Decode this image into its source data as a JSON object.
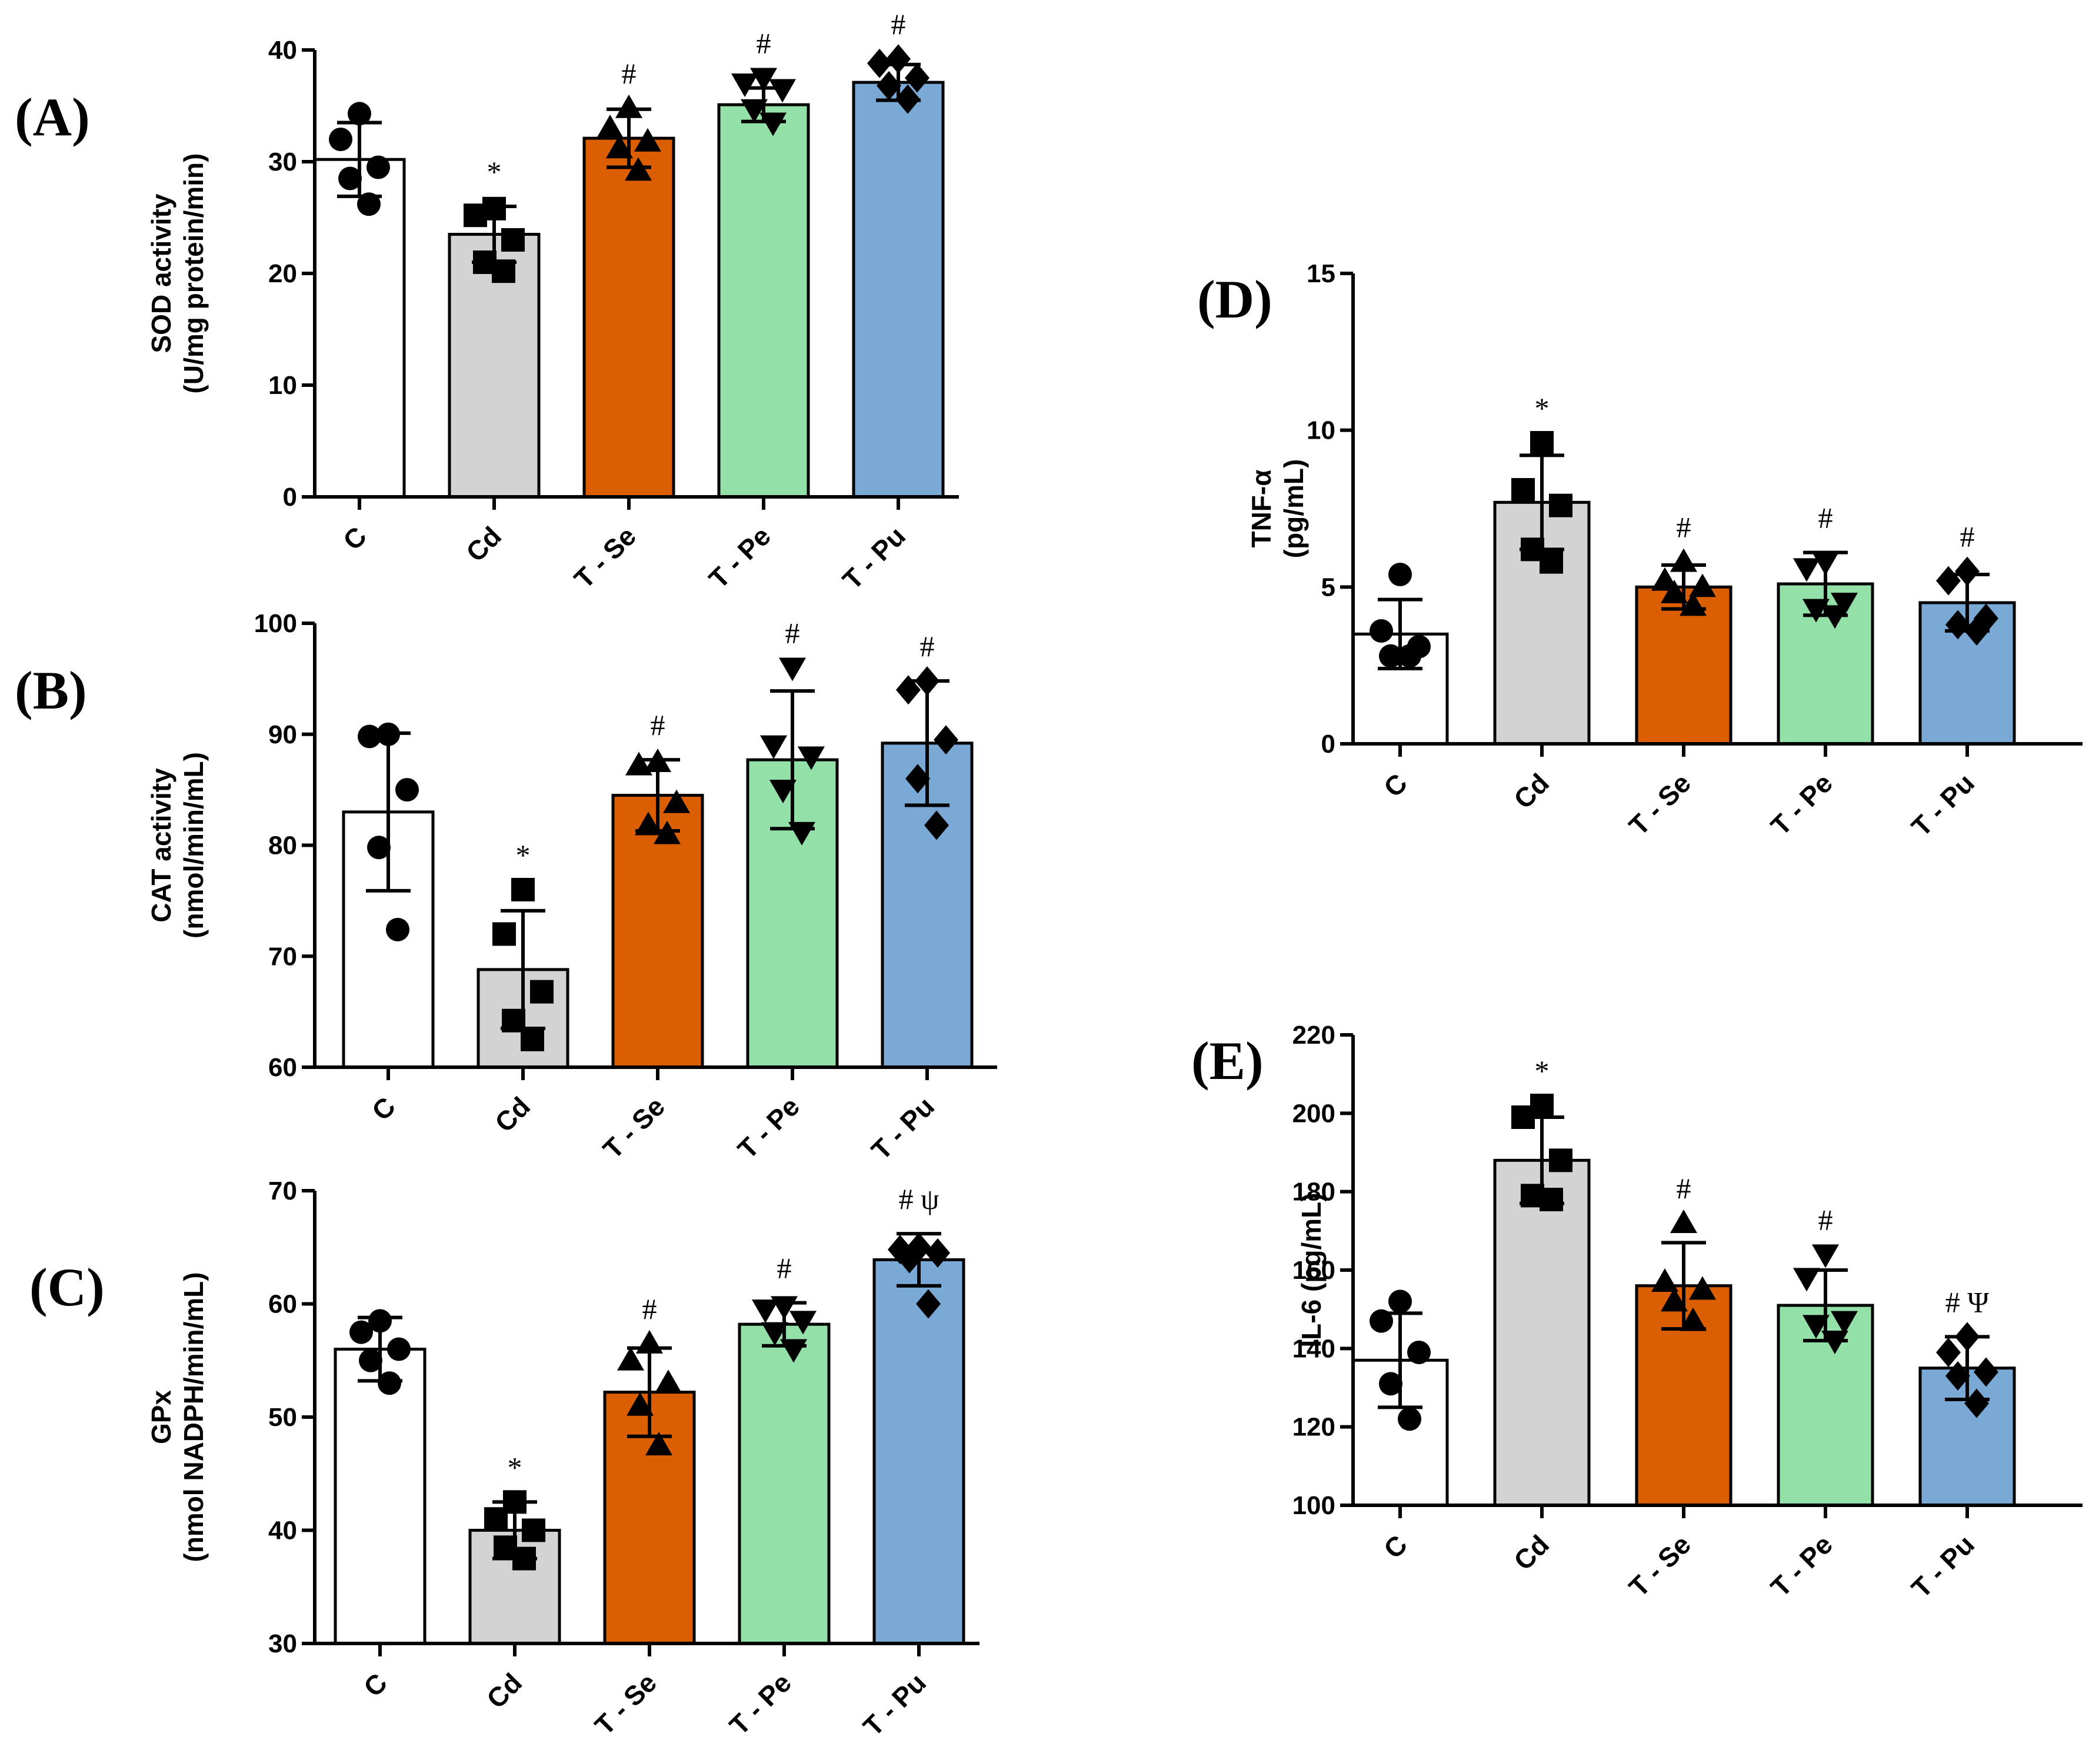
{
  "chart_data": [
    {
      "type": "bar",
      "panel_label": "(A)",
      "ylabel_lines": [
        "SOD activity",
        "(U/mg protein/min)"
      ],
      "categories": [
        "C",
        "Cd",
        "T - Se",
        "T - Pe",
        "T - Pu"
      ],
      "values": [
        30.2,
        23.5,
        32.1,
        35.1,
        37.1
      ],
      "sd": [
        3.3,
        2.5,
        2.6,
        1.5,
        1.6
      ],
      "points": [
        [
          34.3,
          32.0,
          29.5,
          28.5,
          26.2
        ],
        [
          25.8,
          25.2,
          23.0,
          21.0,
          20.2
        ],
        [
          34.8,
          33.0,
          31.8,
          31.2,
          29.2
        ],
        [
          37.5,
          37.0,
          36.5,
          34.7,
          33.5
        ],
        [
          39.2,
          38.8,
          37.5,
          36.8,
          35.6
        ]
      ],
      "markers": [
        "circle",
        "square",
        "triangle-up",
        "triangle-down",
        "diamond"
      ],
      "bar_colors": [
        "#ffffff",
        "#d3d3d3",
        "#db5f00",
        "#93e0a9",
        "#7ba9d5"
      ],
      "significance": [
        "",
        "*",
        "#",
        "#",
        "#"
      ],
      "ylim": [
        0,
        40
      ],
      "yticks": [
        0,
        10,
        20,
        30,
        40
      ]
    },
    {
      "type": "bar",
      "panel_label": "(B)",
      "ylabel_lines": [
        "CAT activity",
        "(nmol/min/mL)"
      ],
      "categories": [
        "C",
        "Cd",
        "T - Se",
        "T - Pe",
        "T - Pu"
      ],
      "values": [
        83.0,
        68.8,
        84.5,
        87.7,
        89.2
      ],
      "sd": [
        7.1,
        5.3,
        3.2,
        6.2,
        5.6
      ],
      "points": [
        [
          90.0,
          89.8,
          85.0,
          79.8,
          72.4
        ],
        [
          76.0,
          72.0,
          66.8,
          64.2,
          62.5
        ],
        [
          87.5,
          87.2,
          83.8,
          81.8,
          81.0
        ],
        [
          96.0,
          89.0,
          88.0,
          85.0,
          81.2
        ],
        [
          94.8,
          94.0,
          89.5,
          86.0,
          81.8
        ]
      ],
      "markers": [
        "circle",
        "square",
        "triangle-up",
        "triangle-down",
        "diamond"
      ],
      "bar_colors": [
        "#ffffff",
        "#d3d3d3",
        "#db5f00",
        "#93e0a9",
        "#7ba9d5"
      ],
      "significance": [
        "",
        "*",
        "#",
        "#",
        "#"
      ],
      "ylim": [
        60,
        100
      ],
      "yticks": [
        60,
        70,
        80,
        90,
        100
      ]
    },
    {
      "type": "bar",
      "panel_label": "(C)",
      "ylabel_lines": [
        "GPx",
        "(nmol NADPH/min/mL)"
      ],
      "categories": [
        "C",
        "Cd",
        "T - Se",
        "T - Pe",
        "T - Pu"
      ],
      "values": [
        56.0,
        40.0,
        52.2,
        58.2,
        63.9
      ],
      "sd": [
        2.8,
        2.5,
        3.9,
        1.9,
        2.3
      ],
      "points": [
        [
          58.5,
          57.5,
          56.0,
          55.0,
          53.0
        ],
        [
          42.5,
          41.0,
          40.0,
          38.5,
          37.5
        ],
        [
          56.5,
          55.0,
          53.0,
          51.0,
          47.5
        ],
        [
          59.8,
          59.5,
          58.5,
          57.5,
          56.0
        ],
        [
          65.0,
          64.8,
          64.5,
          64.0,
          60.0
        ]
      ],
      "markers": [
        "circle",
        "square",
        "triangle-up",
        "triangle-down",
        "diamond"
      ],
      "bar_colors": [
        "#ffffff",
        "#d3d3d3",
        "#db5f00",
        "#93e0a9",
        "#7ba9d5"
      ],
      "significance": [
        "",
        "*",
        "#",
        "#",
        "# ψ"
      ],
      "ylim": [
        30,
        70
      ],
      "yticks": [
        30,
        40,
        50,
        60,
        70
      ]
    },
    {
      "type": "bar",
      "panel_label": "(D)",
      "ylabel_lines": [
        "TNF-α",
        "(pg/mL)"
      ],
      "categories": [
        "C",
        "Cd",
        "T - Se",
        "T - Pe",
        "T - Pu"
      ],
      "values": [
        3.5,
        7.7,
        5.0,
        5.1,
        4.5
      ],
      "sd": [
        1.1,
        1.5,
        0.7,
        1.0,
        0.9
      ],
      "points": [
        [
          5.4,
          3.6,
          3.1,
          2.8,
          2.8
        ],
        [
          9.6,
          8.1,
          7.6,
          6.2,
          5.8
        ],
        [
          5.8,
          5.2,
          5.0,
          4.8,
          4.4
        ],
        [
          5.8,
          5.6,
          4.5,
          4.3,
          4.1
        ],
        [
          5.5,
          5.2,
          4.0,
          3.8,
          3.6
        ]
      ],
      "markers": [
        "circle",
        "square",
        "triangle-up",
        "triangle-down",
        "diamond"
      ],
      "bar_colors": [
        "#ffffff",
        "#d3d3d3",
        "#db5f00",
        "#93e0a9",
        "#7ba9d5"
      ],
      "significance": [
        "",
        "*",
        "#",
        "#",
        "#"
      ],
      "ylim": [
        0,
        15
      ],
      "yticks": [
        0,
        5,
        10,
        15
      ]
    },
    {
      "type": "bar",
      "panel_label": "(E)",
      "ylabel_lines": [
        "IL-6 (pg/mL)"
      ],
      "categories": [
        "C",
        "Cd",
        "T - Se",
        "T - Pe",
        "T - Pu"
      ],
      "values": [
        137,
        188,
        156,
        151,
        135
      ],
      "sd": [
        12,
        11,
        11,
        9,
        8
      ],
      "points": [
        [
          152,
          147,
          139,
          131,
          122
        ],
        [
          202,
          199,
          188,
          179,
          178
        ],
        [
          172,
          157,
          155,
          152,
          147
        ],
        [
          164,
          158,
          147,
          146,
          142
        ],
        [
          143,
          139,
          134,
          133,
          126
        ]
      ],
      "markers": [
        "circle",
        "square",
        "triangle-up",
        "triangle-down",
        "diamond"
      ],
      "bar_colors": [
        "#ffffff",
        "#d3d3d3",
        "#db5f00",
        "#93e0a9",
        "#7ba9d5"
      ],
      "significance": [
        "",
        "*",
        "#",
        "#",
        "# Ψ"
      ],
      "ylim": [
        100,
        220
      ],
      "yticks": [
        100,
        120,
        140,
        160,
        180,
        200,
        220
      ]
    }
  ]
}
